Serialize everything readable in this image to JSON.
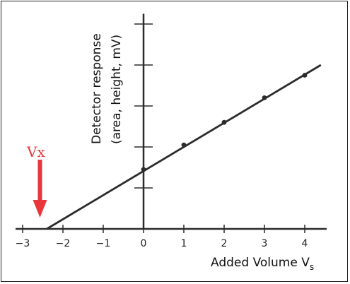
{
  "chart_data": {
    "type": "line",
    "title": "",
    "xlabel": "Added Volume V",
    "xlabel_sub": "s",
    "ylabel_line1": "Detector response",
    "ylabel_line2": "(area, height, mV)",
    "xlim": [
      -3.2,
      4.5
    ],
    "ylim": [
      0,
      5.25
    ],
    "x_ticks": [
      -3,
      -2,
      -1,
      0,
      1,
      2,
      3,
      4
    ],
    "x_tick_labels": [
      "−3",
      "−2",
      "−1",
      "0",
      "1",
      "2",
      "3",
      "4"
    ],
    "y_ticks": [
      1,
      2,
      3,
      4,
      5
    ],
    "series": [
      {
        "x": [
          0,
          1,
          2,
          3,
          4
        ],
        "y": [
          1.45,
          2.05,
          2.6,
          3.2,
          3.75
        ],
        "line_x": [
          -2.4,
          4.4
        ],
        "line_y": [
          0,
          4.0
        ],
        "color": "#2b2b2b"
      }
    ],
    "annotation": {
      "label": "Vx",
      "x": -2.5,
      "color": "#e8373c"
    },
    "grid": false
  }
}
